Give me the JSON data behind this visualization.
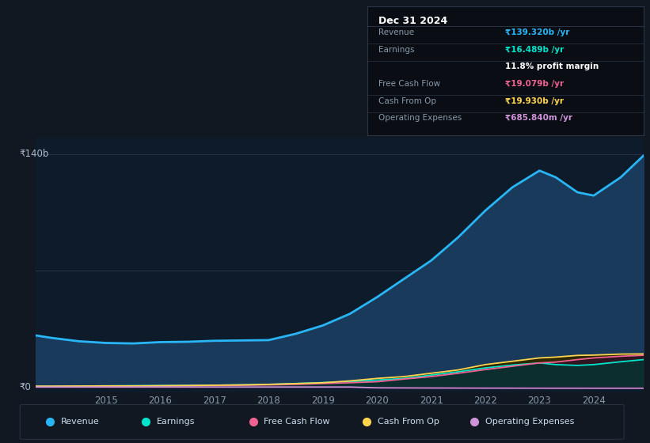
{
  "background_color": "#111822",
  "plot_bg_color": "#0d1b2a",
  "years": [
    2013.7,
    2014.0,
    2014.5,
    2015.0,
    2015.5,
    2016.0,
    2016.5,
    2017.0,
    2017.5,
    2018.0,
    2018.5,
    2019.0,
    2019.5,
    2020.0,
    2020.5,
    2021.0,
    2021.5,
    2022.0,
    2022.5,
    2023.0,
    2023.3,
    2023.7,
    2024.0,
    2024.5,
    2024.92
  ],
  "revenue": [
    31,
    29.5,
    27.5,
    26.5,
    26.2,
    27.0,
    27.2,
    27.8,
    28.0,
    28.2,
    32,
    37,
    44,
    54,
    65,
    76,
    90,
    106,
    120,
    130,
    126,
    117,
    115,
    126,
    139
  ],
  "earnings": [
    0.5,
    0.5,
    0.6,
    0.7,
    0.8,
    0.9,
    1.0,
    1.1,
    1.3,
    1.6,
    2.1,
    2.7,
    3.2,
    4.2,
    5.2,
    7.2,
    9.2,
    11.5,
    13.2,
    14.5,
    13.5,
    13.0,
    13.5,
    15.2,
    16.5
  ],
  "free_cash_flow": [
    0.4,
    0.4,
    0.5,
    0.6,
    0.6,
    0.7,
    0.8,
    0.9,
    1.1,
    1.3,
    1.6,
    2.1,
    2.6,
    3.2,
    4.8,
    6.3,
    8.3,
    10.5,
    12.5,
    14.5,
    15.0,
    16.5,
    17.5,
    18.5,
    19.1
  ],
  "cash_from_op": [
    0.5,
    0.5,
    0.6,
    0.7,
    0.7,
    0.8,
    0.9,
    1.1,
    1.3,
    1.6,
    2.1,
    2.6,
    3.7,
    5.2,
    6.3,
    8.3,
    10.3,
    13.5,
    15.5,
    17.5,
    18.0,
    19.0,
    19.2,
    19.8,
    19.9
  ],
  "op_expenses": [
    0.0,
    0.0,
    0.0,
    0.0,
    0.0,
    0.0,
    0.0,
    0.0,
    0.0,
    0.0,
    0.0,
    0.0,
    0.0,
    -0.45,
    -0.52,
    -0.56,
    -0.6,
    -0.63,
    -0.65,
    -0.67,
    -0.68,
    -0.68,
    -0.69,
    -0.69,
    -0.69
  ],
  "revenue_color": "#29b6f6",
  "earnings_color": "#00e5cc",
  "free_cash_flow_color": "#f06292",
  "cash_from_op_color": "#ffd54f",
  "op_expenses_color": "#ce93d8",
  "revenue_fill": "#1a3a5c",
  "earnings_fill": "#0d2e2e",
  "free_cash_flow_fill": "#2e1520",
  "cash_from_op_fill": "#2e2800",
  "op_expenses_fill": "#180a28",
  "y_label_140": "₹140b",
  "y_label_0": "₹0",
  "x_ticks": [
    2015,
    2016,
    2017,
    2018,
    2019,
    2020,
    2021,
    2022,
    2023,
    2024
  ],
  "ylim_min": -3,
  "ylim_max": 150,
  "legend_labels": [
    "Revenue",
    "Earnings",
    "Free Cash Flow",
    "Cash From Op",
    "Operating Expenses"
  ],
  "legend_colors": [
    "#29b6f6",
    "#00e5cc",
    "#f06292",
    "#ffd54f",
    "#ce93d8"
  ],
  "tooltip_title": "Dec 31 2024",
  "tooltip_rows": [
    {
      "label": "Revenue",
      "value": "₹139.320b /yr",
      "color": "#29b6f6",
      "bold_value": true
    },
    {
      "label": "Earnings",
      "value": "₹16.489b /yr",
      "color": "#00e5cc",
      "bold_value": true
    },
    {
      "label": "",
      "value": "11.8% profit margin",
      "color": "#ffffff",
      "bold_value": true
    },
    {
      "label": "Free Cash Flow",
      "value": "₹19.079b /yr",
      "color": "#f06292",
      "bold_value": true
    },
    {
      "label": "Cash From Op",
      "value": "₹19.930b /yr",
      "color": "#ffd54f",
      "bold_value": true
    },
    {
      "label": "Operating Expenses",
      "value": "₹685.840m /yr",
      "color": "#ce93d8",
      "bold_value": true
    }
  ]
}
